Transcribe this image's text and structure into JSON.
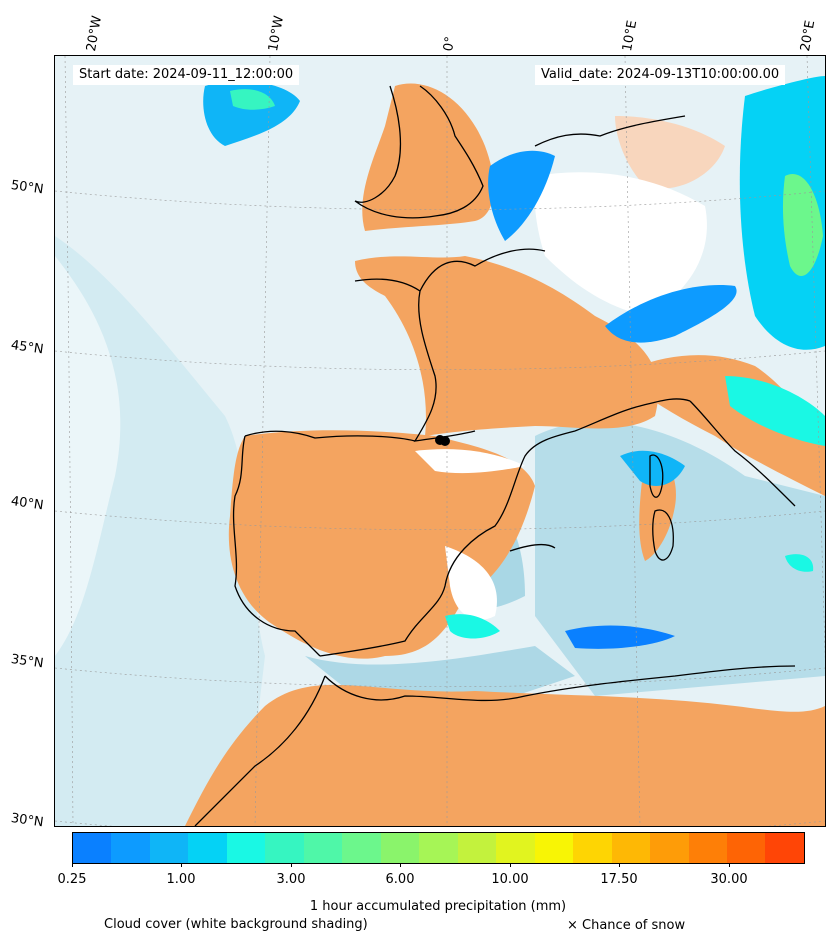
{
  "header": {
    "start_date": "Start date: 2024-09-11_12:00:00",
    "valid_date": "Valid_date: 2024-09-13T10:00:00.00"
  },
  "longitude_labels": [
    "20°W",
    "10°W",
    "0°",
    "10°E",
    "20°E"
  ],
  "latitude_labels": [
    "50°N",
    "45°N",
    "40°N",
    "35°N",
    "30°N"
  ],
  "colorbar": {
    "colors": [
      "#0a80ff",
      "#0d9bff",
      "#0fb5f7",
      "#05d2f5",
      "#1af8e4",
      "#36f5c1",
      "#4ff7a8",
      "#6cf78c",
      "#8af46b",
      "#a6f556",
      "#c3f23d",
      "#e1f41f",
      "#f8f505",
      "#fed503",
      "#feb805",
      "#fe9c08",
      "#fe7f07",
      "#fe6405",
      "#ff4506"
    ],
    "tick_labels": [
      "0.25",
      "1.00",
      "3.00",
      "6.00",
      "10.00",
      "17.50",
      "30.00"
    ],
    "label": "1 hour accumulated precipitation (mm)"
  },
  "legend": {
    "cloud_cover": "Cloud cover (white background shading)",
    "snow": "× Chance of snow"
  },
  "map_colors": {
    "clear_sky": "#f4a460",
    "cloud_light": "#cfe7ef",
    "cloud_dense": "#a8d8e6",
    "coast": "#000000"
  }
}
